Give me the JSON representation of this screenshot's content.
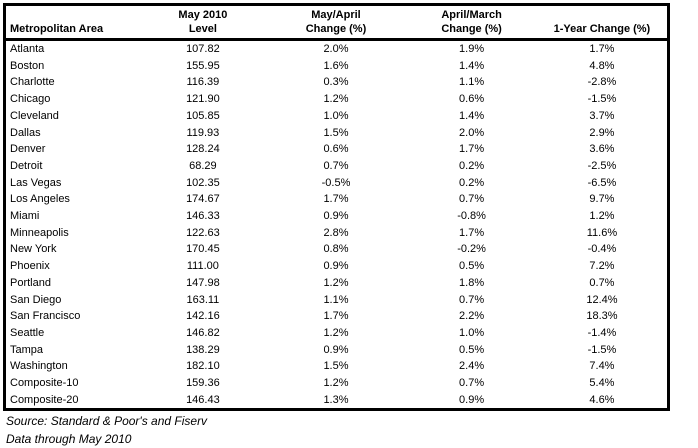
{
  "colors": {
    "border": "#000000",
    "text": "#000000",
    "background": "#ffffff"
  },
  "table": {
    "columns": [
      {
        "line1": "",
        "line2": "Metropolitan Area"
      },
      {
        "line1": "May 2010",
        "line2": "Level"
      },
      {
        "line1": "May/April",
        "line2": "Change (%)"
      },
      {
        "line1": "April/March",
        "line2": "Change (%)"
      },
      {
        "line1": "",
        "line2": "1-Year Change (%)"
      }
    ],
    "rows": [
      [
        "Atlanta",
        "107.82",
        "2.0%",
        "1.9%",
        "1.7%"
      ],
      [
        "Boston",
        "155.95",
        "1.6%",
        "1.4%",
        "4.8%"
      ],
      [
        "Charlotte",
        "116.39",
        "0.3%",
        "1.1%",
        "-2.8%"
      ],
      [
        "Chicago",
        "121.90",
        "1.2%",
        "0.6%",
        "-1.5%"
      ],
      [
        "Cleveland",
        "105.85",
        "1.0%",
        "1.4%",
        "3.7%"
      ],
      [
        "Dallas",
        "119.93",
        "1.5%",
        "2.0%",
        "2.9%"
      ],
      [
        "Denver",
        "128.24",
        "0.6%",
        "1.7%",
        "3.6%"
      ],
      [
        "Detroit",
        "68.29",
        "0.7%",
        "0.2%",
        "-2.5%"
      ],
      [
        "Las Vegas",
        "102.35",
        "-0.5%",
        "0.2%",
        "-6.5%"
      ],
      [
        "Los Angeles",
        "174.67",
        "1.7%",
        "0.7%",
        "9.7%"
      ],
      [
        "Miami",
        "146.33",
        "0.9%",
        "-0.8%",
        "1.2%"
      ],
      [
        "Minneapolis",
        "122.63",
        "2.8%",
        "1.7%",
        "11.6%"
      ],
      [
        "New York",
        "170.45",
        "0.8%",
        "-0.2%",
        "-0.4%"
      ],
      [
        "Phoenix",
        "111.00",
        "0.9%",
        "0.5%",
        "7.2%"
      ],
      [
        "Portland",
        "147.98",
        "1.2%",
        "1.8%",
        "0.7%"
      ],
      [
        "San Diego",
        "163.11",
        "1.1%",
        "0.7%",
        "12.4%"
      ],
      [
        "San Francisco",
        "142.16",
        "1.7%",
        "2.2%",
        "18.3%"
      ],
      [
        "Seattle",
        "146.82",
        "1.2%",
        "1.0%",
        "-1.4%"
      ],
      [
        "Tampa",
        "138.29",
        "0.9%",
        "0.5%",
        "-1.5%"
      ],
      [
        "Washington",
        "182.10",
        "1.5%",
        "2.4%",
        "7.4%"
      ],
      [
        "Composite-10",
        "159.36",
        "1.2%",
        "0.7%",
        "5.4%"
      ],
      [
        "Composite-20",
        "146.43",
        "1.3%",
        "0.9%",
        "4.6%"
      ]
    ]
  },
  "footer": {
    "source": "Source: Standard & Poor's and Fiserv",
    "data_through": "Data through May 2010"
  }
}
